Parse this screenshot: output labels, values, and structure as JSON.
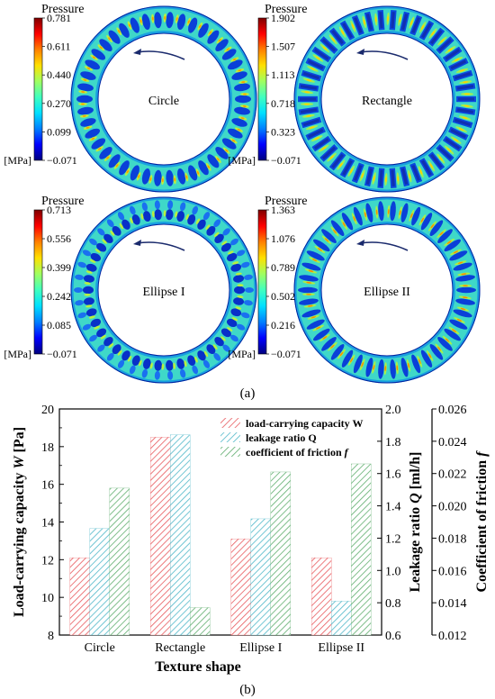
{
  "panel_a": {
    "caption": "(a)",
    "arrow_color": "#1a2a6c",
    "colormap": [
      "#00007f",
      "#0000ff",
      "#0080ff",
      "#00e0ff",
      "#40ffbf",
      "#a0ff60",
      "#ffe000",
      "#ff8000",
      "#ff0000",
      "#7f0000"
    ],
    "plots": [
      {
        "label": "Circle",
        "colorbar_title": "Pressure",
        "unit": "[MPa]",
        "ticks": [
          "0.781",
          "0.611",
          "0.440",
          "0.270",
          "0.099",
          "−0.071"
        ],
        "texture": "circle"
      },
      {
        "label": "Rectangle",
        "colorbar_title": "Pressure",
        "unit": "[MPa]",
        "ticks": [
          "1.902",
          "1.507",
          "1.113",
          "0.718",
          "0.323",
          "−0.071"
        ],
        "texture": "rectangle"
      },
      {
        "label": "Ellipse I",
        "colorbar_title": "Pressure",
        "unit": "[MPa]",
        "ticks": [
          "0.713",
          "0.556",
          "0.399",
          "0.242",
          "0.085",
          "−0.071"
        ],
        "texture": "ellipse1"
      },
      {
        "label": "Ellipse II",
        "colorbar_title": "Pressure",
        "unit": "[MPa]",
        "ticks": [
          "1.363",
          "1.076",
          "0.789",
          "0.502",
          "0.216",
          "−0.071"
        ],
        "texture": "ellipse2"
      }
    ]
  },
  "chart_data": {
    "type": "bar",
    "caption": "(b)",
    "xlabel": "Texture shape",
    "categories": [
      "Circle",
      "Rectangle",
      "Ellipse I",
      "Ellipse II"
    ],
    "axes": {
      "left": {
        "label": "Load-carrying capacity W [Pa]",
        "ylim": [
          8,
          20
        ],
        "ticks": [
          8,
          10,
          12,
          14,
          16,
          18,
          20
        ]
      },
      "right1": {
        "label": "Leakage ratio Q [ml/h]",
        "ylim": [
          0.6,
          2.0
        ],
        "ticks": [
          "0.6",
          "0.8",
          "1.0",
          "1.2",
          "1.4",
          "1.6",
          "1.8",
          "2.0"
        ]
      },
      "right2": {
        "label": "Coefficient of friction f",
        "ylim": [
          0.012,
          0.026
        ],
        "ticks": [
          "0.012",
          "0.014",
          "0.016",
          "0.018",
          "0.020",
          "0.022",
          "0.024",
          "0.026"
        ]
      }
    },
    "series": [
      {
        "name": "load-carrying capacity W",
        "axis": "left",
        "color": "#e8585c",
        "values": [
          12.1,
          18.5,
          13.1,
          12.1
        ]
      },
      {
        "name": "leakage ratio Q",
        "axis": "right1",
        "color": "#4fb7c9",
        "values": [
          1.26,
          1.84,
          1.32,
          0.81
        ]
      },
      {
        "name": "coefficient of friction f",
        "axis": "right2",
        "color": "#5fae6e",
        "values": [
          0.0211,
          0.0137,
          0.0221,
          0.0226
        ]
      }
    ],
    "legend_position": "top-right",
    "grid": false
  }
}
